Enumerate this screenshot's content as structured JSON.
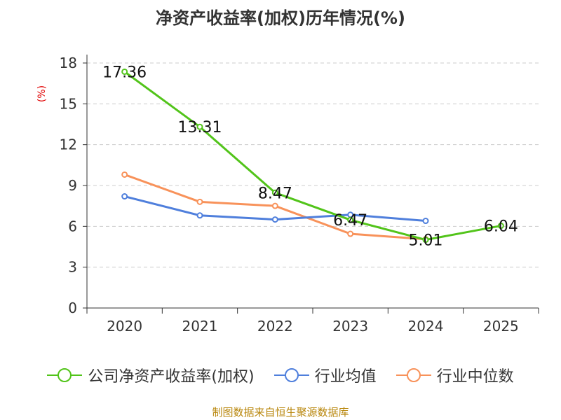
{
  "chart_data": {
    "type": "line",
    "title": "净资产收益率(加权)历年情况(%)",
    "ylabel": "(%)",
    "xlabel": "",
    "categories": [
      "2020",
      "2021",
      "2022",
      "2023",
      "2024",
      "2025"
    ],
    "ylim": [
      0,
      18
    ],
    "yticks": [
      0,
      3,
      6,
      9,
      12,
      15,
      18
    ],
    "series": [
      {
        "name": "公司净资产收益率(加权)",
        "color": "#52c41a",
        "values": [
          17.36,
          13.31,
          8.47,
          6.47,
          5.01,
          6.04
        ],
        "labels": [
          "17.36",
          "13.31",
          "8.47",
          "6.47",
          "5.01",
          "6.04"
        ]
      },
      {
        "name": "行业均值",
        "color": "#4f7fdc",
        "values": [
          8.2,
          6.8,
          6.5,
          6.85,
          6.4,
          null
        ]
      },
      {
        "name": "行业中位数",
        "color": "#f8925a",
        "values": [
          9.8,
          7.8,
          7.5,
          5.45,
          5.05,
          null
        ]
      }
    ],
    "source": "制图数据来自恒生聚源数据库"
  }
}
